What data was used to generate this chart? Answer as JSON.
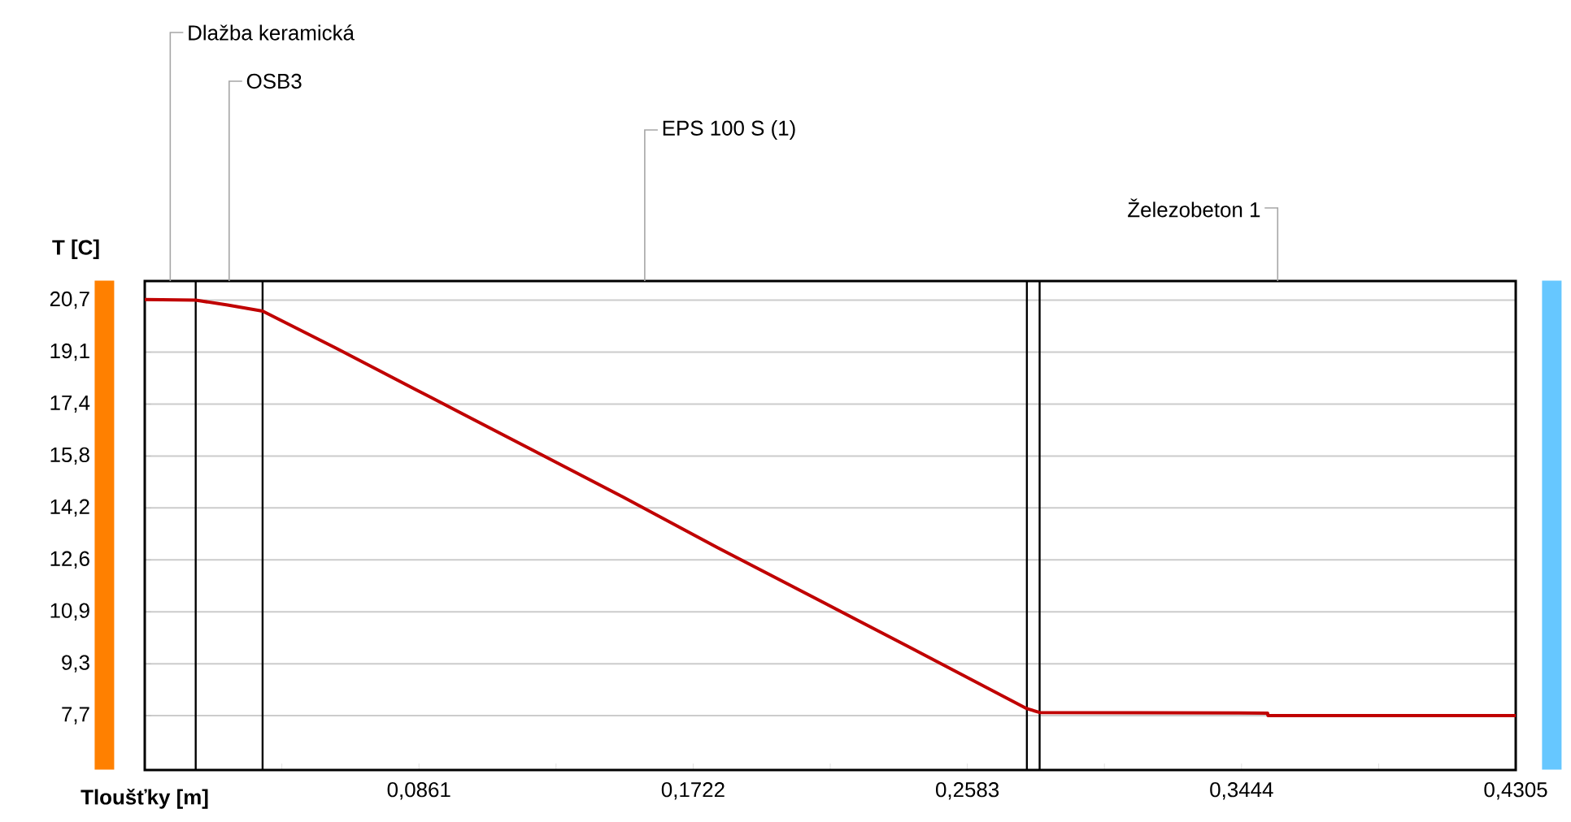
{
  "chart_data": {
    "type": "line",
    "xlabel": "Tloušťky [m]",
    "ylabel": "T [C]",
    "x": [
      0,
      0.016,
      0.026,
      0.037,
      0.06,
      0.09,
      0.12,
      0.15,
      0.18,
      0.21,
      0.24,
      0.277,
      0.281,
      0.3526,
      0.3527,
      0.4305
    ],
    "series": [
      {
        "color": "#c00000",
        "values": [
          20.72,
          20.7,
          20.55,
          20.36,
          19.2,
          17.65,
          16.1,
          14.55,
          12.95,
          11.4,
          9.85,
          7.92,
          7.8,
          7.78,
          7.7,
          7.7
        ]
      }
    ],
    "xlim": [
      0,
      0.4305
    ],
    "xticks": [
      {
        "value": 0.04305,
        "label": null
      },
      {
        "value": 0.0861,
        "label": "0,0861"
      },
      {
        "value": 0.12915,
        "label": null
      },
      {
        "value": 0.1722,
        "label": "0,1722"
      },
      {
        "value": 0.21525,
        "label": null
      },
      {
        "value": 0.2583,
        "label": "0,2583"
      },
      {
        "value": 0.30135,
        "label": null
      },
      {
        "value": 0.3444,
        "label": "0,3444"
      },
      {
        "value": 0.38745,
        "label": null
      },
      {
        "value": 0.4305,
        "label": "0,4305"
      }
    ],
    "ylim": [
      6.0,
      21.3
    ],
    "yticks": [
      {
        "value": 7.7,
        "label": "7,7"
      },
      {
        "value": 9.325,
        "label": "9,3"
      },
      {
        "value": 10.95,
        "label": "10,9"
      },
      {
        "value": 12.575,
        "label": "12,6"
      },
      {
        "value": 14.2,
        "label": "14,2"
      },
      {
        "value": 15.825,
        "label": "15,8"
      },
      {
        "value": 17.45,
        "label": "17,4"
      },
      {
        "value": 19.075,
        "label": "19,1"
      },
      {
        "value": 20.7,
        "label": "20,7"
      }
    ],
    "grid": "y",
    "line_style": "solid",
    "ref_lines": [
      {
        "axis": "x",
        "value": 0.016,
        "color": "#000000"
      },
      {
        "axis": "x",
        "value": 0.037,
        "color": "#000000"
      },
      {
        "axis": "x",
        "value": 0.277,
        "color": "#000000"
      },
      {
        "axis": "x",
        "value": 0.281,
        "color": "#000000"
      }
    ],
    "annotations": [
      "Dlažba keramická",
      "OSB3",
      "EPS 100 S (1)",
      "Železobeton 1"
    ]
  }
}
